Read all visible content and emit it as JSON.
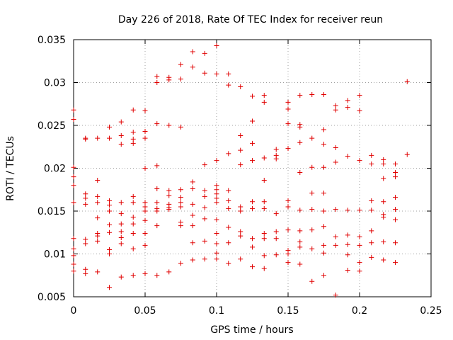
{
  "chart_data": {
    "type": "scatter",
    "title": "Day 226 of 2018, Rate Of TEC Index for receiver reun",
    "xlabel": "GPS time / hours",
    "ylabel": "ROTI / TECUs",
    "xlim": [
      0,
      0.25
    ],
    "ylim": [
      0.005,
      0.035
    ],
    "grid": true,
    "marker": "plus",
    "color": "#e00000",
    "x_ticks": [
      0,
      0.05,
      0.1,
      0.15,
      0.2,
      0.25
    ],
    "x_tick_labels": [
      "0",
      "0.05",
      "0.1",
      "0.15",
      "0.2",
      "0.25"
    ],
    "y_ticks": [
      0.005,
      0.01,
      0.015,
      0.02,
      0.025,
      0.03,
      0.035
    ],
    "y_tick_labels": [
      "0.005",
      "0.01",
      "0.015",
      "0.02",
      "0.025",
      "0.03",
      "0.035"
    ],
    "series": [
      {
        "name": "ROTI",
        "points": [
          [
            0,
            0.0268
          ],
          [
            0,
            0.0257
          ],
          [
            0,
            0.0201
          ],
          [
            0,
            0.019
          ],
          [
            0,
            0.018
          ],
          [
            0,
            0.016
          ],
          [
            0,
            0.0118
          ],
          [
            0,
            0.0106
          ],
          [
            0,
            0.0098
          ],
          [
            0,
            0.0088
          ],
          [
            0,
            0.008
          ],
          [
            0.0083,
            0.0235
          ],
          [
            0.0083,
            0.0234
          ],
          [
            0.0083,
            0.017
          ],
          [
            0.0083,
            0.0165
          ],
          [
            0.0083,
            0.0158
          ],
          [
            0.0083,
            0.0117
          ],
          [
            0.0083,
            0.0112
          ],
          [
            0.0083,
            0.0082
          ],
          [
            0.0083,
            0.0077
          ],
          [
            0.0167,
            0.0235
          ],
          [
            0.0167,
            0.0186
          ],
          [
            0.0167,
            0.0167
          ],
          [
            0.0167,
            0.016
          ],
          [
            0.0167,
            0.0142
          ],
          [
            0.0167,
            0.0124
          ],
          [
            0.0167,
            0.0121
          ],
          [
            0.0167,
            0.0115
          ],
          [
            0.0167,
            0.0079
          ],
          [
            0.025,
            0.0248
          ],
          [
            0.025,
            0.0235
          ],
          [
            0.025,
            0.0162
          ],
          [
            0.025,
            0.0157
          ],
          [
            0.025,
            0.015
          ],
          [
            0.025,
            0.0134
          ],
          [
            0.025,
            0.0125
          ],
          [
            0.025,
            0.0105
          ],
          [
            0.025,
            0.01
          ],
          [
            0.025,
            0.0061
          ],
          [
            0.0333,
            0.0254
          ],
          [
            0.0333,
            0.0238
          ],
          [
            0.0333,
            0.0228
          ],
          [
            0.0333,
            0.016
          ],
          [
            0.0333,
            0.0147
          ],
          [
            0.0333,
            0.0135
          ],
          [
            0.0333,
            0.0126
          ],
          [
            0.0333,
            0.0119
          ],
          [
            0.0333,
            0.0112
          ],
          [
            0.0333,
            0.0073
          ],
          [
            0.0417,
            0.0268
          ],
          [
            0.0417,
            0.0242
          ],
          [
            0.0417,
            0.0234
          ],
          [
            0.0417,
            0.0229
          ],
          [
            0.0417,
            0.0167
          ],
          [
            0.0417,
            0.016
          ],
          [
            0.0417,
            0.0143
          ],
          [
            0.0417,
            0.0135
          ],
          [
            0.0417,
            0.0124
          ],
          [
            0.0417,
            0.0106
          ],
          [
            0.0417,
            0.0075
          ],
          [
            0.05,
            0.0267
          ],
          [
            0.05,
            0.0243
          ],
          [
            0.05,
            0.0235
          ],
          [
            0.05,
            0.02
          ],
          [
            0.05,
            0.016
          ],
          [
            0.05,
            0.0155
          ],
          [
            0.05,
            0.015
          ],
          [
            0.05,
            0.0139
          ],
          [
            0.05,
            0.0124
          ],
          [
            0.05,
            0.011
          ],
          [
            0.05,
            0.0077
          ],
          [
            0.0583,
            0.0307
          ],
          [
            0.0583,
            0.03
          ],
          [
            0.0583,
            0.0252
          ],
          [
            0.0583,
            0.0203
          ],
          [
            0.0583,
            0.0176
          ],
          [
            0.0583,
            0.016
          ],
          [
            0.0583,
            0.0153
          ],
          [
            0.0583,
            0.015
          ],
          [
            0.0583,
            0.0133
          ],
          [
            0.0583,
            0.0075
          ],
          [
            0.0667,
            0.0306
          ],
          [
            0.0667,
            0.0303
          ],
          [
            0.0667,
            0.025
          ],
          [
            0.0667,
            0.0174
          ],
          [
            0.0667,
            0.0168
          ],
          [
            0.0667,
            0.0158
          ],
          [
            0.0667,
            0.0154
          ],
          [
            0.0667,
            0.0152
          ],
          [
            0.0667,
            0.0079
          ],
          [
            0.075,
            0.0321
          ],
          [
            0.075,
            0.0304
          ],
          [
            0.075,
            0.0248
          ],
          [
            0.075,
            0.0175
          ],
          [
            0.075,
            0.0166
          ],
          [
            0.075,
            0.016
          ],
          [
            0.075,
            0.0155
          ],
          [
            0.075,
            0.0137
          ],
          [
            0.075,
            0.0133
          ],
          [
            0.075,
            0.0089
          ],
          [
            0.0833,
            0.0336
          ],
          [
            0.0833,
            0.0318
          ],
          [
            0.0833,
            0.0184
          ],
          [
            0.0833,
            0.0176
          ],
          [
            0.0833,
            0.0158
          ],
          [
            0.0833,
            0.0145
          ],
          [
            0.0833,
            0.0133
          ],
          [
            0.0833,
            0.0113
          ],
          [
            0.0833,
            0.0093
          ],
          [
            0.0917,
            0.0334
          ],
          [
            0.0917,
            0.0311
          ],
          [
            0.0917,
            0.0204
          ],
          [
            0.0917,
            0.0174
          ],
          [
            0.0917,
            0.0167
          ],
          [
            0.0917,
            0.0154
          ],
          [
            0.0917,
            0.0141
          ],
          [
            0.0917,
            0.0115
          ],
          [
            0.0917,
            0.0094
          ],
          [
            0.1,
            0.0343
          ],
          [
            0.1,
            0.031
          ],
          [
            0.1,
            0.0209
          ],
          [
            0.1,
            0.018
          ],
          [
            0.1,
            0.0175
          ],
          [
            0.1,
            0.017
          ],
          [
            0.1,
            0.0165
          ],
          [
            0.1,
            0.016
          ],
          [
            0.1,
            0.014
          ],
          [
            0.1,
            0.0124
          ],
          [
            0.1,
            0.0112
          ],
          [
            0.1,
            0.0101
          ],
          [
            0.1,
            0.0094
          ],
          [
            0.1083,
            0.031
          ],
          [
            0.1083,
            0.0297
          ],
          [
            0.1083,
            0.0217
          ],
          [
            0.1083,
            0.0174
          ],
          [
            0.1083,
            0.0162
          ],
          [
            0.1083,
            0.0153
          ],
          [
            0.1083,
            0.0131
          ],
          [
            0.1083,
            0.0113
          ],
          [
            0.1083,
            0.0089
          ],
          [
            0.1167,
            0.0295
          ],
          [
            0.1167,
            0.0238
          ],
          [
            0.1167,
            0.0221
          ],
          [
            0.1167,
            0.0204
          ],
          [
            0.1167,
            0.0155
          ],
          [
            0.1167,
            0.015
          ],
          [
            0.1167,
            0.0126
          ],
          [
            0.1167,
            0.0121
          ],
          [
            0.1167,
            0.0094
          ],
          [
            0.125,
            0.0284
          ],
          [
            0.125,
            0.0255
          ],
          [
            0.125,
            0.0229
          ],
          [
            0.125,
            0.0209
          ],
          [
            0.125,
            0.0161
          ],
          [
            0.125,
            0.0153
          ],
          [
            0.125,
            0.0118
          ],
          [
            0.125,
            0.0108
          ],
          [
            0.125,
            0.0085
          ],
          [
            0.1333,
            0.0285
          ],
          [
            0.1333,
            0.0277
          ],
          [
            0.1333,
            0.0212
          ],
          [
            0.1333,
            0.0186
          ],
          [
            0.1333,
            0.0161
          ],
          [
            0.1333,
            0.0153
          ],
          [
            0.1333,
            0.0124
          ],
          [
            0.1333,
            0.0118
          ],
          [
            0.1333,
            0.0098
          ],
          [
            0.1333,
            0.0083
          ],
          [
            0.1417,
            0.0222
          ],
          [
            0.1417,
            0.0215
          ],
          [
            0.1417,
            0.0211
          ],
          [
            0.1417,
            0.0147
          ],
          [
            0.1417,
            0.0126
          ],
          [
            0.1417,
            0.0118
          ],
          [
            0.1417,
            0.0099
          ],
          [
            0.15,
            0.0277
          ],
          [
            0.15,
            0.0269
          ],
          [
            0.15,
            0.0252
          ],
          [
            0.15,
            0.0223
          ],
          [
            0.15,
            0.0162
          ],
          [
            0.15,
            0.0155
          ],
          [
            0.15,
            0.0128
          ],
          [
            0.15,
            0.0104
          ],
          [
            0.15,
            0.01
          ],
          [
            0.15,
            0.009
          ],
          [
            0.1583,
            0.0285
          ],
          [
            0.1583,
            0.0251
          ],
          [
            0.1583,
            0.0248
          ],
          [
            0.1583,
            0.023
          ],
          [
            0.1583,
            0.0195
          ],
          [
            0.1583,
            0.0151
          ],
          [
            0.1583,
            0.0127
          ],
          [
            0.1583,
            0.0114
          ],
          [
            0.1583,
            0.0108
          ],
          [
            0.1583,
            0.0088
          ],
          [
            0.1667,
            0.0286
          ],
          [
            0.1667,
            0.0235
          ],
          [
            0.1667,
            0.0201
          ],
          [
            0.1667,
            0.0171
          ],
          [
            0.1667,
            0.0152
          ],
          [
            0.1667,
            0.0128
          ],
          [
            0.1667,
            0.0106
          ],
          [
            0.1667,
            0.0068
          ],
          [
            0.175,
            0.0286
          ],
          [
            0.175,
            0.0245
          ],
          [
            0.175,
            0.0228
          ],
          [
            0.175,
            0.0201
          ],
          [
            0.175,
            0.0171
          ],
          [
            0.175,
            0.015
          ],
          [
            0.175,
            0.0132
          ],
          [
            0.175,
            0.011
          ],
          [
            0.175,
            0.0101
          ],
          [
            0.175,
            0.0075
          ],
          [
            0.1833,
            0.0273
          ],
          [
            0.1833,
            0.0268
          ],
          [
            0.1833,
            0.0224
          ],
          [
            0.1833,
            0.0207
          ],
          [
            0.1833,
            0.0152
          ],
          [
            0.1833,
            0.012
          ],
          [
            0.1833,
            0.011
          ],
          [
            0.1833,
            0.0052
          ],
          [
            0.1917,
            0.0279
          ],
          [
            0.1917,
            0.0271
          ],
          [
            0.1917,
            0.0214
          ],
          [
            0.1917,
            0.0151
          ],
          [
            0.1917,
            0.0122
          ],
          [
            0.1917,
            0.0111
          ],
          [
            0.1917,
            0.0099
          ],
          [
            0.1917,
            0.0081
          ],
          [
            0.2,
            0.0285
          ],
          [
            0.2,
            0.0267
          ],
          [
            0.2,
            0.0209
          ],
          [
            0.2,
            0.0151
          ],
          [
            0.2,
            0.012
          ],
          [
            0.2,
            0.011
          ],
          [
            0.2,
            0.009
          ],
          [
            0.2,
            0.008
          ],
          [
            0.2083,
            0.0215
          ],
          [
            0.2083,
            0.0205
          ],
          [
            0.2083,
            0.0162
          ],
          [
            0.2083,
            0.0151
          ],
          [
            0.2083,
            0.0127
          ],
          [
            0.2083,
            0.0113
          ],
          [
            0.2083,
            0.0096
          ],
          [
            0.2167,
            0.021
          ],
          [
            0.2167,
            0.0205
          ],
          [
            0.2167,
            0.0188
          ],
          [
            0.2167,
            0.0161
          ],
          [
            0.2167,
            0.0146
          ],
          [
            0.2167,
            0.0143
          ],
          [
            0.2167,
            0.0114
          ],
          [
            0.2167,
            0.0093
          ],
          [
            0.225,
            0.0205
          ],
          [
            0.225,
            0.0195
          ],
          [
            0.225,
            0.019
          ],
          [
            0.225,
            0.0166
          ],
          [
            0.225,
            0.0152
          ],
          [
            0.225,
            0.014
          ],
          [
            0.225,
            0.0113
          ],
          [
            0.225,
            0.009
          ],
          [
            0.2333,
            0.0301
          ],
          [
            0.2333,
            0.0216
          ]
        ]
      }
    ]
  }
}
